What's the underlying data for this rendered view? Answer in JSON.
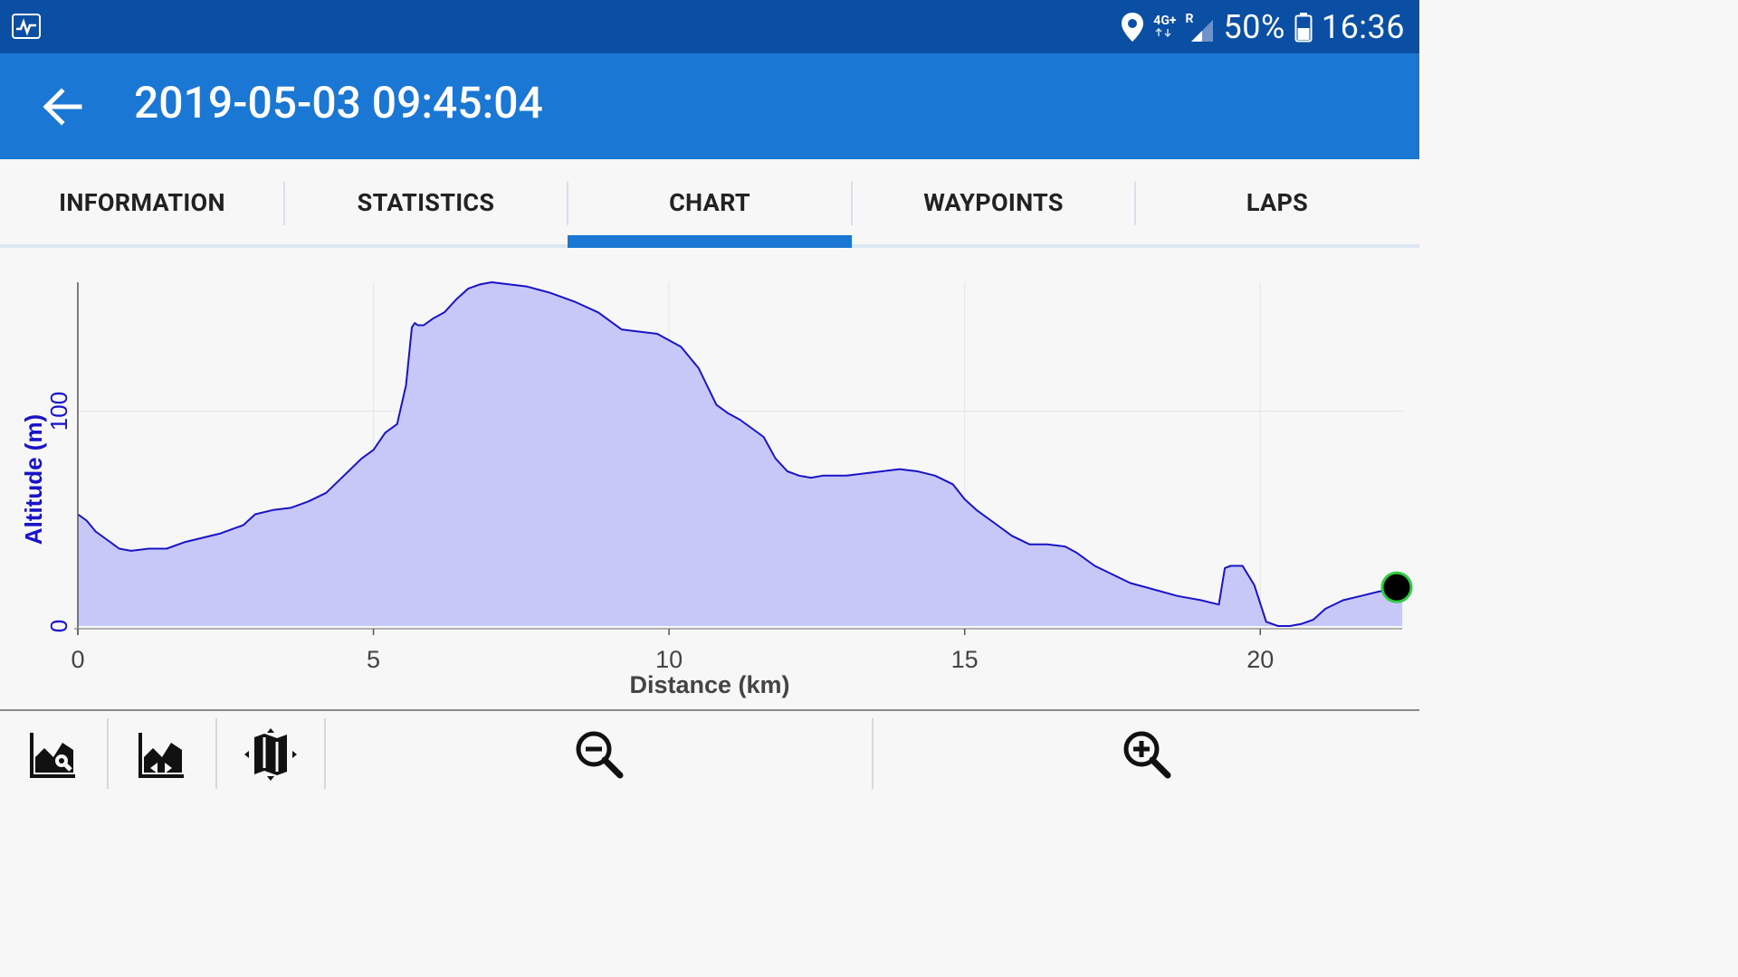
{
  "status_bar": {
    "network_top": "4G+",
    "network_bottom": "R",
    "battery_text": "50%",
    "time": "16:36"
  },
  "app_bar": {
    "title": "2019-05-03 09:45:04"
  },
  "tabs": [
    {
      "label": "INFORMATION",
      "active": false
    },
    {
      "label": "STATISTICS",
      "active": false
    },
    {
      "label": "CHART",
      "active": true
    },
    {
      "label": "WAYPOINTS",
      "active": false
    },
    {
      "label": "LAPS",
      "active": false
    }
  ],
  "colors": {
    "status_bar": "#0a4fa3",
    "app_bar": "#1b77d4",
    "series_line": "#1a14c8",
    "series_fill": "#c7c8f7",
    "axis_label": "#1a14c8",
    "marker_fill": "#000000",
    "marker_stroke": "#2ecc40"
  },
  "chart_data": {
    "type": "area",
    "xlabel": "Distance (km)",
    "ylabel": "Altitude (m)",
    "xlim": [
      0,
      22.4
    ],
    "ylim": [
      0,
      160
    ],
    "x_ticks": [
      0,
      5,
      10,
      15,
      20
    ],
    "y_ticks": [
      0,
      100
    ],
    "grid": true,
    "series": [
      {
        "x": [
          0,
          0.15,
          0.3,
          0.5,
          0.7,
          0.9,
          1.2,
          1.5,
          1.8,
          2.1,
          2.4,
          2.8,
          3.0,
          3.3,
          3.6,
          3.9,
          4.2,
          4.5,
          4.8,
          5.0,
          5.2,
          5.4,
          5.55,
          5.65,
          5.7,
          5.75,
          5.85,
          6.0,
          6.2,
          6.4,
          6.6,
          6.8,
          7.0,
          7.3,
          7.6,
          8.0,
          8.4,
          8.8,
          9.2,
          9.5,
          9.8,
          10.2,
          10.5,
          10.8,
          11.0,
          11.2,
          11.4,
          11.6,
          11.8,
          12.0,
          12.2,
          12.4,
          12.6,
          12.8,
          13.0,
          13.3,
          13.6,
          13.9,
          14.2,
          14.5,
          14.8,
          15.0,
          15.2,
          15.5,
          15.8,
          16.1,
          16.4,
          16.7,
          16.9,
          17.2,
          17.5,
          17.8,
          18.2,
          18.6,
          19.0,
          19.3,
          19.4,
          19.5,
          19.7,
          19.9,
          20.1,
          20.3,
          20.5,
          20.7,
          20.9,
          21.1,
          21.4,
          21.7,
          22.0,
          22.4
        ],
        "y": [
          52,
          49,
          44,
          40,
          36,
          35,
          36,
          36,
          39,
          41,
          43,
          47,
          52,
          54,
          55,
          58,
          62,
          70,
          78,
          82,
          90,
          94,
          112,
          139,
          141,
          140,
          140,
          143,
          146,
          152,
          157,
          159,
          160,
          159,
          158,
          155,
          151,
          146,
          138,
          137,
          136,
          130,
          120,
          103,
          99,
          96,
          92,
          88,
          78,
          72,
          70,
          69,
          70,
          70,
          70,
          71,
          72,
          73,
          72,
          70,
          66,
          59,
          54,
          48,
          42,
          38,
          38,
          37,
          34,
          28,
          24,
          20,
          17,
          14,
          12,
          10,
          27,
          28,
          28,
          19,
          2,
          0,
          0,
          1,
          3,
          8,
          12,
          14,
          16,
          18
        ]
      }
    ],
    "current_position": {
      "x": 22.4,
      "y": 18
    }
  }
}
